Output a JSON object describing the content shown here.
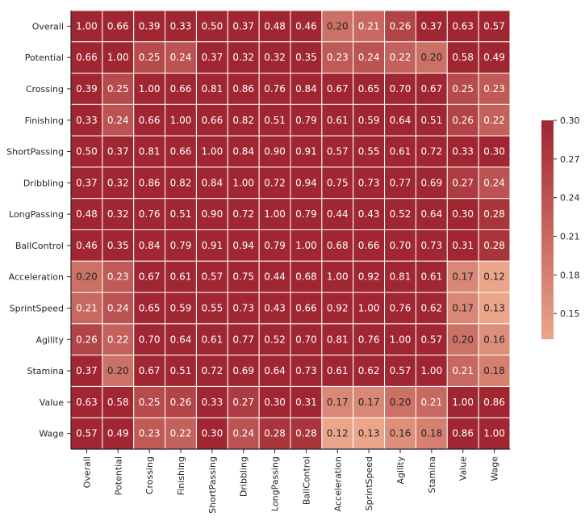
{
  "chart_data": {
    "type": "heatmap",
    "title": "",
    "xlabel": "",
    "ylabel": "",
    "x_labels": [
      "Overall",
      "Potential",
      "Crossing",
      "Finishing",
      "ShortPassing",
      "Dribbling",
      "LongPassing",
      "BallControl",
      "Acceleration",
      "SprintSpeed",
      "Agility",
      "Stamina",
      "Value",
      "Wage"
    ],
    "y_labels": [
      "Overall",
      "Potential",
      "Crossing",
      "Finishing",
      "ShortPassing",
      "Dribbling",
      "LongPassing",
      "BallControl",
      "Acceleration",
      "SprintSpeed",
      "Agility",
      "Stamina",
      "Value",
      "Wage"
    ],
    "values": [
      [
        1.0,
        0.66,
        0.39,
        0.33,
        0.5,
        0.37,
        0.48,
        0.46,
        0.2,
        0.21,
        0.26,
        0.37,
        0.63,
        0.57
      ],
      [
        0.66,
        1.0,
        0.25,
        0.24,
        0.37,
        0.32,
        0.32,
        0.35,
        0.23,
        0.24,
        0.22,
        0.2,
        0.58,
        0.49
      ],
      [
        0.39,
        0.25,
        1.0,
        0.66,
        0.81,
        0.86,
        0.76,
        0.84,
        0.67,
        0.65,
        0.7,
        0.67,
        0.25,
        0.23
      ],
      [
        0.33,
        0.24,
        0.66,
        1.0,
        0.66,
        0.82,
        0.51,
        0.79,
        0.61,
        0.59,
        0.64,
        0.51,
        0.26,
        0.22
      ],
      [
        0.5,
        0.37,
        0.81,
        0.66,
        1.0,
        0.84,
        0.9,
        0.91,
        0.57,
        0.55,
        0.61,
        0.72,
        0.33,
        0.3
      ],
      [
        0.37,
        0.32,
        0.86,
        0.82,
        0.84,
        1.0,
        0.72,
        0.94,
        0.75,
        0.73,
        0.77,
        0.69,
        0.27,
        0.24
      ],
      [
        0.48,
        0.32,
        0.76,
        0.51,
        0.9,
        0.72,
        1.0,
        0.79,
        0.44,
        0.43,
        0.52,
        0.64,
        0.3,
        0.28
      ],
      [
        0.46,
        0.35,
        0.84,
        0.79,
        0.91,
        0.94,
        0.79,
        1.0,
        0.68,
        0.66,
        0.7,
        0.73,
        0.31,
        0.28
      ],
      [
        0.2,
        0.23,
        0.67,
        0.61,
        0.57,
        0.75,
        0.44,
        0.68,
        1.0,
        0.92,
        0.81,
        0.61,
        0.17,
        0.12
      ],
      [
        0.21,
        0.24,
        0.65,
        0.59,
        0.55,
        0.73,
        0.43,
        0.66,
        0.92,
        1.0,
        0.76,
        0.62,
        0.17,
        0.13
      ],
      [
        0.26,
        0.22,
        0.7,
        0.64,
        0.61,
        0.77,
        0.52,
        0.7,
        0.81,
        0.76,
        1.0,
        0.57,
        0.2,
        0.16
      ],
      [
        0.37,
        0.2,
        0.67,
        0.51,
        0.72,
        0.69,
        0.64,
        0.73,
        0.61,
        0.62,
        0.57,
        1.0,
        0.21,
        0.18
      ],
      [
        0.63,
        0.58,
        0.25,
        0.26,
        0.33,
        0.27,
        0.3,
        0.31,
        0.17,
        0.17,
        0.2,
        0.21,
        1.0,
        0.86
      ],
      [
        0.57,
        0.49,
        0.23,
        0.22,
        0.3,
        0.24,
        0.28,
        0.28,
        0.12,
        0.13,
        0.16,
        0.18,
        0.86,
        1.0
      ]
    ],
    "value_format": "0.00",
    "colorbar": {
      "min": 0.13,
      "max": 0.3,
      "ticks": [
        "0.30",
        "0.27",
        "0.24",
        "0.21",
        "0.18",
        "0.15"
      ],
      "tick_values": [
        0.3,
        0.27,
        0.24,
        0.21,
        0.18,
        0.15
      ]
    },
    "colors": {
      "low": "#eba58b",
      "high": "#a02632",
      "cell_border": "#ffffff",
      "text_dark": "#262626",
      "text_light": "#ffffff"
    },
    "grid": false,
    "legend": "colorbar-right"
  }
}
